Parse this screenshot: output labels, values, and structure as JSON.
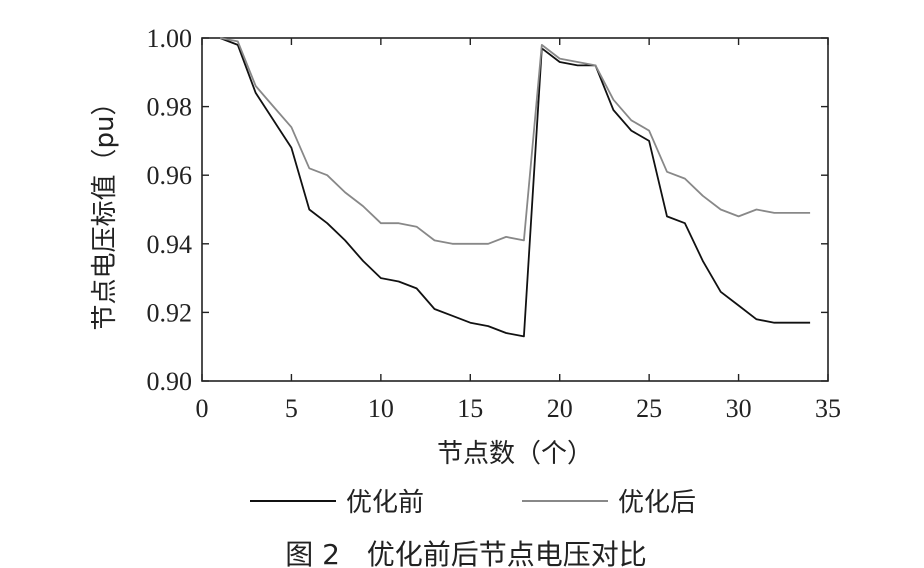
{
  "chart_data": {
    "type": "line",
    "caption": "图 2   优化前后节点电压对比",
    "xlabel": "节点数（个）",
    "ylabel": "节点电压标值（pu）",
    "xlim": [
      0,
      35
    ],
    "ylim": [
      0.9,
      1.0
    ],
    "xticks": [
      0,
      5,
      10,
      15,
      20,
      25,
      30,
      35
    ],
    "xtick_labels": [
      "0",
      "5",
      "10",
      "15",
      "20",
      "25",
      "30",
      "35"
    ],
    "yticks": [
      0.9,
      0.92,
      0.94,
      0.96,
      0.98,
      1.0
    ],
    "ytick_labels": [
      "0.90",
      "0.92",
      "0.94",
      "0.96",
      "0.98",
      "1.00"
    ],
    "grid": false,
    "legend_position": "bottom",
    "series": [
      {
        "name": "优化前",
        "color": "#111111",
        "x": [
          1,
          2,
          3,
          4,
          5,
          6,
          7,
          8,
          9,
          10,
          11,
          12,
          13,
          14,
          15,
          16,
          17,
          18,
          19,
          20,
          21,
          22,
          23,
          24,
          25,
          26,
          27,
          28,
          29,
          30,
          31,
          32,
          33,
          34
        ],
        "y": [
          1.0,
          0.998,
          0.984,
          0.976,
          0.968,
          0.95,
          0.946,
          0.941,
          0.935,
          0.93,
          0.929,
          0.927,
          0.921,
          0.919,
          0.917,
          0.916,
          0.914,
          0.913,
          0.997,
          0.993,
          0.992,
          0.992,
          0.979,
          0.973,
          0.97,
          0.948,
          0.946,
          0.935,
          0.926,
          0.922,
          0.918,
          0.917,
          0.917,
          0.917
        ]
      },
      {
        "name": "优化后",
        "color": "#888888",
        "x": [
          1,
          2,
          3,
          4,
          5,
          6,
          7,
          8,
          9,
          10,
          11,
          12,
          13,
          14,
          15,
          16,
          17,
          18,
          19,
          20,
          21,
          22,
          23,
          24,
          25,
          26,
          27,
          28,
          29,
          30,
          31,
          32,
          33,
          34
        ],
        "y": [
          1.0,
          0.999,
          0.986,
          0.98,
          0.974,
          0.962,
          0.96,
          0.955,
          0.951,
          0.946,
          0.946,
          0.945,
          0.941,
          0.94,
          0.94,
          0.94,
          0.942,
          0.941,
          0.998,
          0.994,
          0.993,
          0.992,
          0.982,
          0.976,
          0.973,
          0.961,
          0.959,
          0.954,
          0.95,
          0.948,
          0.95,
          0.949,
          0.949,
          0.949
        ]
      }
    ]
  }
}
